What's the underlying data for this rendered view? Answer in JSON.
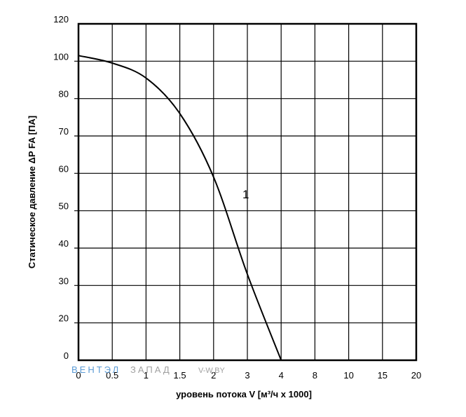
{
  "chart_data": {
    "type": "line",
    "xlabel": "уровень потока V [м³/ч х 1000]",
    "ylabel": "Статическое давление ΔP FA [ПА]",
    "x_ticks": [
      "0",
      "0.5",
      "1",
      "1.5",
      "2",
      "3",
      "4",
      "8",
      "10",
      "15",
      "20"
    ],
    "y_ticks": [
      "0",
      "20",
      "30",
      "40",
      "50",
      "60",
      "70",
      "80",
      "100",
      "120"
    ],
    "grid": true,
    "series": [
      {
        "name": "1",
        "points": [
          {
            "x": 0,
            "y": 103
          },
          {
            "x": 0.5,
            "y": 99
          },
          {
            "x": 1,
            "y": 91
          },
          {
            "x": 1.5,
            "y": 76
          },
          {
            "x": 2,
            "y": 59
          },
          {
            "x": 3,
            "y": 33
          },
          {
            "x": 4,
            "y": 0
          }
        ]
      }
    ]
  },
  "watermark": {
    "brand_part1": "ВЕНТЭЛ",
    "brand_part2": "ЗАПАД",
    "site": "V-W.BY",
    "color_part1": "#5b9bd5",
    "color_part2": "#a0a0a0"
  }
}
